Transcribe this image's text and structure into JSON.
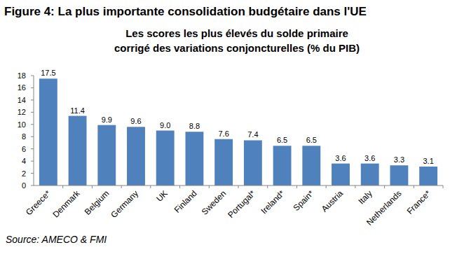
{
  "chart_data": {
    "type": "bar",
    "title": "Figure 4: La plus importante consolidation budgétaire dans l'UE",
    "subtitle": [
      "Les scores les plus élevés du solde primaire",
      "corrigé des variations conjoncturelles (% du PIB)"
    ],
    "source": "Source: AMECO & FMI",
    "categories": [
      "Greece*",
      "Denmark",
      "Belgium",
      "Germany",
      "UK",
      "Finland",
      "Sweden",
      "Portugal*",
      "Ireland*",
      "Spain*",
      "Austria",
      "Italy",
      "Netherlands",
      "France*"
    ],
    "values": [
      17.5,
      11.4,
      9.9,
      9.6,
      9.0,
      8.8,
      7.6,
      7.4,
      6.5,
      6.5,
      3.6,
      3.6,
      3.3,
      3.1
    ],
    "value_labels": [
      "17.5",
      "11.4",
      "9.9",
      "9.6",
      "9.0",
      "8.8",
      "7.6",
      "7.4",
      "6.5",
      "6.5",
      "3.6",
      "3.6",
      "3.3",
      "3.1"
    ],
    "color": "#4f81bd",
    "ylim": [
      0,
      18
    ],
    "yticks": [
      0,
      2,
      4,
      6,
      8,
      10,
      12,
      14,
      16,
      18
    ],
    "grid": false,
    "data_labels": true
  }
}
